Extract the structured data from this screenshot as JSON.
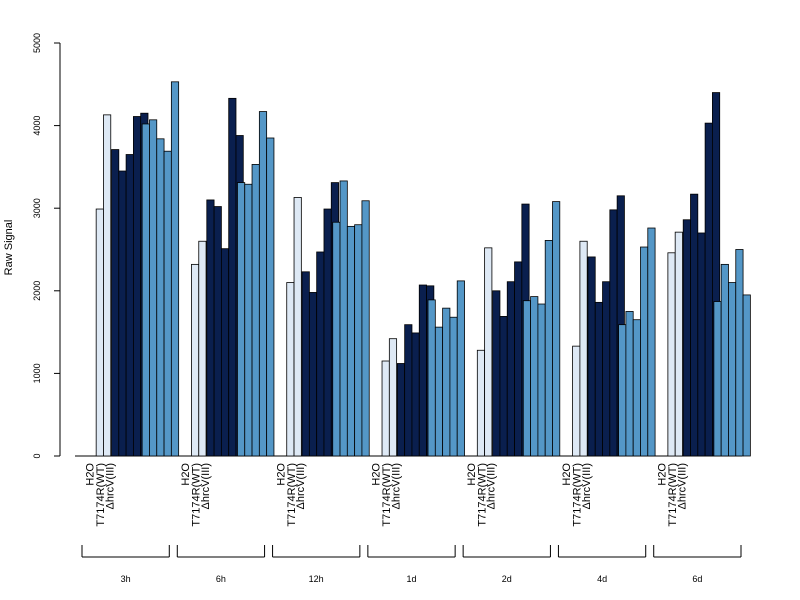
{
  "chart_data": {
    "type": "bar",
    "title": "",
    "ylabel": "Raw Signal",
    "ylim": [
      0,
      5000
    ],
    "yticks": [
      0,
      1000,
      2000,
      3000,
      4000,
      5000
    ],
    "grid": false,
    "categories": [
      "H2O",
      "T717 4R(WT)",
      "ΔhrcV(III)"
    ],
    "category_labels": [
      "H2O",
      "T7174R(WT)",
      "ΔhrcV(III)"
    ],
    "category_colors": [
      "#dee9f5",
      "#0a1f4e",
      "#5497c7"
    ],
    "groups": [
      {
        "name": "3h",
        "values": [
          [
            2990,
            4130
          ],
          [
            3710,
            3450,
            3650,
            4110,
            4150
          ],
          [
            4020,
            4070,
            3840,
            3690,
            4530
          ]
        ]
      },
      {
        "name": "6h",
        "values": [
          [
            2320,
            2600
          ],
          [
            3100,
            3020,
            2510,
            4330,
            3880
          ],
          [
            3310,
            3290,
            3530,
            4170,
            3850
          ]
        ]
      },
      {
        "name": "12h",
        "values": [
          [
            2100,
            3130
          ],
          [
            2230,
            1980,
            2470,
            2990,
            3310
          ],
          [
            2830,
            3330,
            2780,
            2800,
            3090
          ]
        ]
      },
      {
        "name": "1d",
        "values": [
          [
            1150,
            1420
          ],
          [
            1120,
            1590,
            1490,
            2070,
            2060
          ],
          [
            1890,
            1560,
            1790,
            1680,
            2120
          ]
        ]
      },
      {
        "name": "2d",
        "values": [
          [
            1280,
            2520
          ],
          [
            2000,
            1690,
            2110,
            2350,
            3050
          ],
          [
            1880,
            1930,
            1840,
            2610,
            3080
          ]
        ]
      },
      {
        "name": "4d",
        "values": [
          [
            1330,
            2600
          ],
          [
            2410,
            1860,
            2110,
            2980,
            3150
          ],
          [
            1590,
            1750,
            1650,
            2530,
            2760
          ]
        ]
      },
      {
        "name": "6d",
        "values": [
          [
            2460,
            2710
          ],
          [
            2860,
            3170,
            2700,
            4030,
            4400
          ],
          [
            1870,
            2320,
            2100,
            2500,
            1950
          ]
        ]
      }
    ]
  }
}
